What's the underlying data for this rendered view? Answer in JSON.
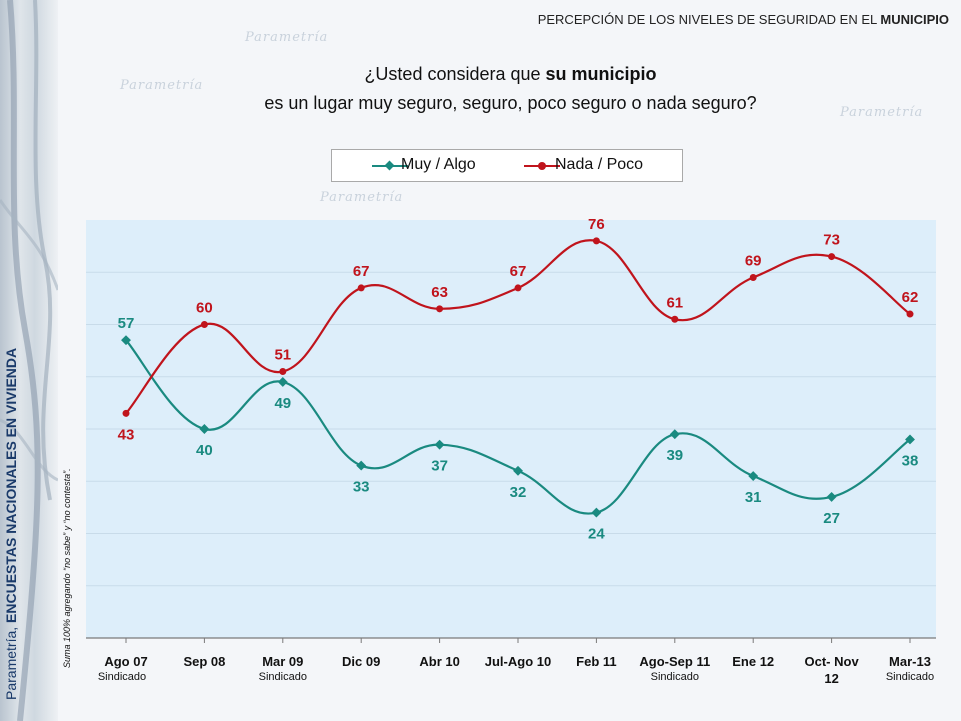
{
  "header": {
    "title_prefix": "PERCEPCIÓN DE LOS NIVELES DE SEGURIDAD EN EL ",
    "title_bold": "MUNICIPIO"
  },
  "question": {
    "line1_prefix": "¿Usted considera que ",
    "line1_bold": "su municipio",
    "line2": "es un lugar muy seguro, seguro, poco seguro o nada seguro?"
  },
  "brand": {
    "prefix": "Parametría, ",
    "bold": "ENCUESTAS NACIONALES EN VIVIENDA"
  },
  "note": "Suma 100% agregando “no sabe” y “no contesta”.",
  "colors": {
    "muy": "#1a8a80",
    "nada": "#c0141c",
    "plot_bg": "#ddeefa"
  },
  "chart_data": {
    "type": "line",
    "categories": [
      "Ago 07",
      "Sep 08",
      "Mar 09",
      "Dic 09",
      "Abr 10",
      "Jul-Ago 10",
      "Feb 11",
      "Ago-Sep 11",
      "Ene 12",
      "Oct- Nov 12",
      "Mar-13"
    ],
    "category_sublabels": [
      "Sindicado",
      "",
      "Sindicado",
      "",
      "",
      "",
      "",
      "Sindicado",
      "",
      "",
      "Sindicado"
    ],
    "series": [
      {
        "name": "Muy / Algo",
        "color": "#1a8a80",
        "values": [
          57,
          40,
          49,
          33,
          37,
          32,
          24,
          39,
          31,
          27,
          38
        ]
      },
      {
        "name": "Nada / Poco",
        "color": "#c0141c",
        "values": [
          43,
          60,
          51,
          67,
          63,
          67,
          76,
          61,
          69,
          73,
          62
        ]
      }
    ],
    "ylim": [
      0,
      80
    ],
    "legend": "top-center",
    "smooth": true
  }
}
